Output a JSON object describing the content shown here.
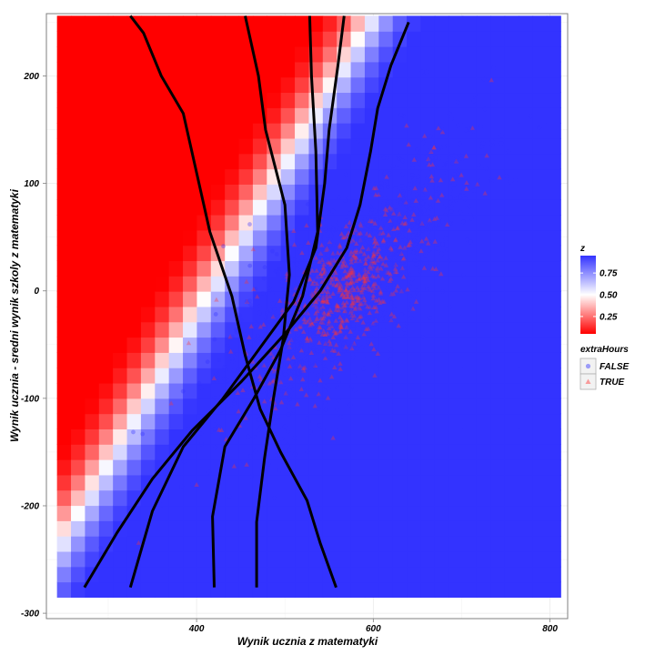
{
  "chart_data": {
    "type": "scatter",
    "xlabel": "Wynik ucznia z matematyki",
    "ylabel": "Wynik ucznia - sredni wynik szkoly z matematyki",
    "xlim": [
      230,
      820
    ],
    "ylim": [
      -305,
      258
    ],
    "x_ticks": [
      400,
      600,
      800
    ],
    "y_ticks": [
      200,
      100,
      0,
      -100,
      -200,
      -300
    ],
    "x_tick_labels": [
      "400",
      "600",
      "800"
    ],
    "y_tick_labels": [
      "200",
      "100",
      "0",
      "-100",
      "-200",
      "-300"
    ],
    "grid": true,
    "fill": {
      "name": "z",
      "domain": [
        0.05,
        0.95
      ],
      "ticks": [
        0.25,
        0.5,
        0.75
      ],
      "tick_labels": [
        "0.25",
        "0.50",
        "0.75"
      ],
      "low_color": "#ff0000",
      "mid_color": "#ffffff",
      "high_color": "#3333ff",
      "extent_x": [
        242,
        812
      ],
      "extent_y": [
        -285,
        256
      ]
    },
    "contours": [
      [
        [
          273,
          -276
        ],
        [
          310,
          -225
        ],
        [
          350,
          -175
        ],
        [
          395,
          -130
        ],
        [
          450,
          -85
        ],
        [
          500,
          -40
        ],
        [
          540,
          0
        ],
        [
          570,
          40
        ],
        [
          585,
          80
        ],
        [
          597,
          130
        ],
        [
          605,
          170
        ],
        [
          620,
          210
        ],
        [
          640,
          250
        ]
      ],
      [
        [
          325,
          -276
        ],
        [
          350,
          -205
        ],
        [
          385,
          -145
        ],
        [
          430,
          -100
        ],
        [
          470,
          -55
        ],
        [
          510,
          -10
        ],
        [
          535,
          40
        ],
        [
          545,
          100
        ],
        [
          550,
          150
        ],
        [
          560,
          210
        ],
        [
          567,
          256
        ]
      ],
      [
        [
          420,
          -276
        ],
        [
          418,
          -210
        ],
        [
          432,
          -145
        ],
        [
          465,
          -100
        ],
        [
          495,
          -55
        ],
        [
          520,
          -5
        ],
        [
          537,
          55
        ],
        [
          535,
          130
        ],
        [
          530,
          200
        ],
        [
          528,
          256
        ]
      ],
      [
        [
          468,
          -276
        ],
        [
          468,
          -215
        ],
        [
          477,
          -155
        ],
        [
          487,
          -100
        ],
        [
          498,
          -45
        ],
        [
          505,
          15
        ],
        [
          500,
          80
        ],
        [
          478,
          150
        ],
        [
          470,
          200
        ],
        [
          455,
          256
        ]
      ],
      [
        [
          558,
          -276
        ],
        [
          540,
          -235
        ],
        [
          525,
          -195
        ],
        [
          495,
          -150
        ],
        [
          472,
          -110
        ],
        [
          455,
          -60
        ],
        [
          440,
          -5
        ],
        [
          415,
          55
        ],
        [
          400,
          110
        ],
        [
          385,
          165
        ],
        [
          360,
          200
        ],
        [
          340,
          240
        ],
        [
          325,
          256
        ]
      ]
    ],
    "series": [
      {
        "name": "FALSE",
        "shape": "circle",
        "color": "#3333ff",
        "opacity": 0.35
      },
      {
        "name": "TRUE",
        "shape": "triangle",
        "color": "#ff3333",
        "opacity": 0.35
      }
    ],
    "legend": {
      "title": "extraHours",
      "entries": [
        "FALSE",
        "TRUE"
      ],
      "placement": "right"
    }
  },
  "colors": {
    "panel_border": "#7f7f7f",
    "grid": "#ebebeb",
    "contour": "#000000"
  }
}
